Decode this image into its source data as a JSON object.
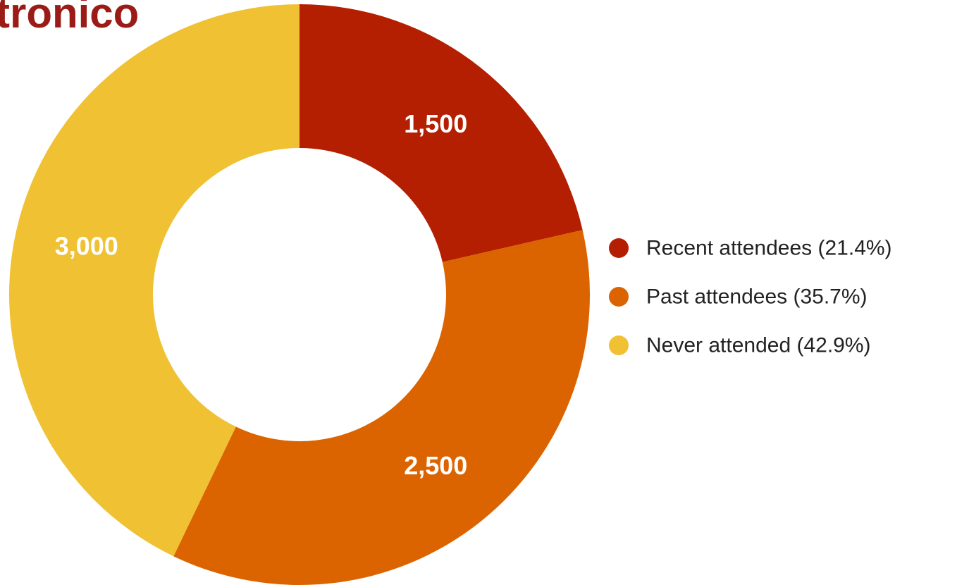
{
  "title": "tronico",
  "chart_data": {
    "type": "pie",
    "donut": true,
    "slices": [
      {
        "label": "Recent attendees",
        "value": 1500,
        "value_label": "1,500",
        "percent_label": "21.4%",
        "color": "#b31f00"
      },
      {
        "label": "Past attendees",
        "value": 2500,
        "value_label": "2,500",
        "percent_label": "35.7%",
        "color": "#dc6400"
      },
      {
        "label": "Never attended",
        "value": 3000,
        "value_label": "3,000",
        "percent_label": "42.9%",
        "color": "#efc133"
      }
    ],
    "legend_position": "right"
  }
}
